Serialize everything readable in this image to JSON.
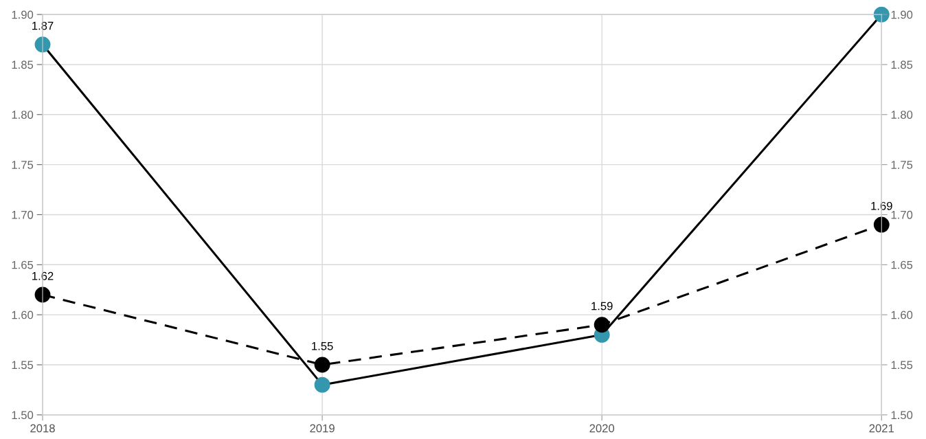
{
  "chart_data": {
    "type": "line",
    "categories": [
      "2018",
      "2019",
      "2020",
      "2021"
    ],
    "series": [
      {
        "color": "#000000",
        "colors": [
          "#3497ad",
          "#3497ad",
          "#3497ad",
          "#3497ad"
        ],
        "line_style": "solid",
        "values": [
          1.87,
          1.53,
          1.58,
          1.9
        ],
        "value_labels": [
          "1.87",
          null,
          null,
          null
        ]
      },
      {
        "color": "#000000",
        "colors": [
          "#000000",
          "#000000",
          "#000000",
          "#000000"
        ],
        "line_style": "dashed",
        "values": [
          1.62,
          1.55,
          1.59,
          1.69
        ],
        "value_labels": [
          "1.62",
          "1.55",
          "1.59",
          "1.69"
        ]
      }
    ],
    "ylim": [
      1.5,
      1.9
    ],
    "yticks": [
      {
        "value": 1.5,
        "label": "1.50"
      },
      {
        "value": 1.55,
        "label": "1.55"
      },
      {
        "value": 1.6,
        "label": "1.60"
      },
      {
        "value": 1.65,
        "label": "1.65"
      },
      {
        "value": 1.7,
        "label": "1.70"
      },
      {
        "value": 1.75,
        "label": "1.75"
      },
      {
        "value": 1.8,
        "label": "1.80"
      },
      {
        "value": 1.85,
        "label": "1.85"
      },
      {
        "value": 1.9,
        "label": "1.90"
      }
    ],
    "y2lim": [
      1.5,
      1.9
    ],
    "y2ticks": [
      {
        "value": 1.5,
        "label": "1.50"
      },
      {
        "value": 1.55,
        "label": "1.55"
      },
      {
        "value": 1.6,
        "label": "1.60"
      },
      {
        "value": 1.65,
        "label": "1.65"
      },
      {
        "value": 1.7,
        "label": "1.70"
      },
      {
        "value": 1.75,
        "label": "1.75"
      },
      {
        "value": 1.8,
        "label": "1.80"
      },
      {
        "value": 1.85,
        "label": "1.85"
      },
      {
        "value": 1.9,
        "label": "1.90"
      }
    ],
    "grid": true,
    "marker": "circle"
  }
}
